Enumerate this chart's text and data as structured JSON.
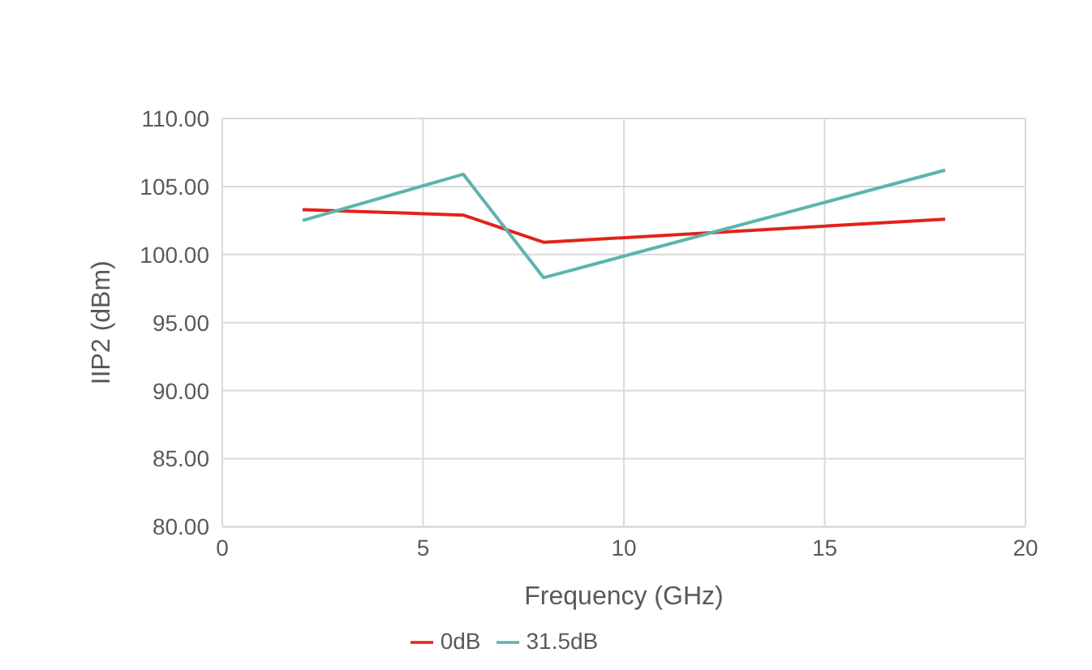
{
  "chart_data": {
    "type": "line",
    "xlabel": "Frequency (GHz)",
    "ylabel": "IIP2 (dBm)",
    "x": [
      2,
      6,
      8,
      18
    ],
    "series": [
      {
        "name": "0dB",
        "color": "#e2231a",
        "values": [
          103.3,
          102.9,
          100.9,
          102.6
        ]
      },
      {
        "name": "31.5dB",
        "color": "#5eb3ae",
        "values": [
          102.5,
          105.9,
          98.3,
          106.2
        ]
      }
    ],
    "xlim": [
      0,
      20
    ],
    "xticks": [
      0,
      5,
      10,
      15,
      20
    ],
    "ylim": [
      80,
      110
    ],
    "yticks": [
      {
        "value": 80,
        "label": "80.00"
      },
      {
        "value": 85,
        "label": "85.00"
      },
      {
        "value": 90,
        "label": "90.00"
      },
      {
        "value": 95,
        "label": "95.00"
      },
      {
        "value": 100,
        "label": "100.00"
      },
      {
        "value": 105,
        "label": "105.00"
      },
      {
        "value": 110,
        "label": "110.00"
      }
    ],
    "grid": true,
    "legend": "bottom",
    "marker": "none",
    "line_style": "solid"
  }
}
